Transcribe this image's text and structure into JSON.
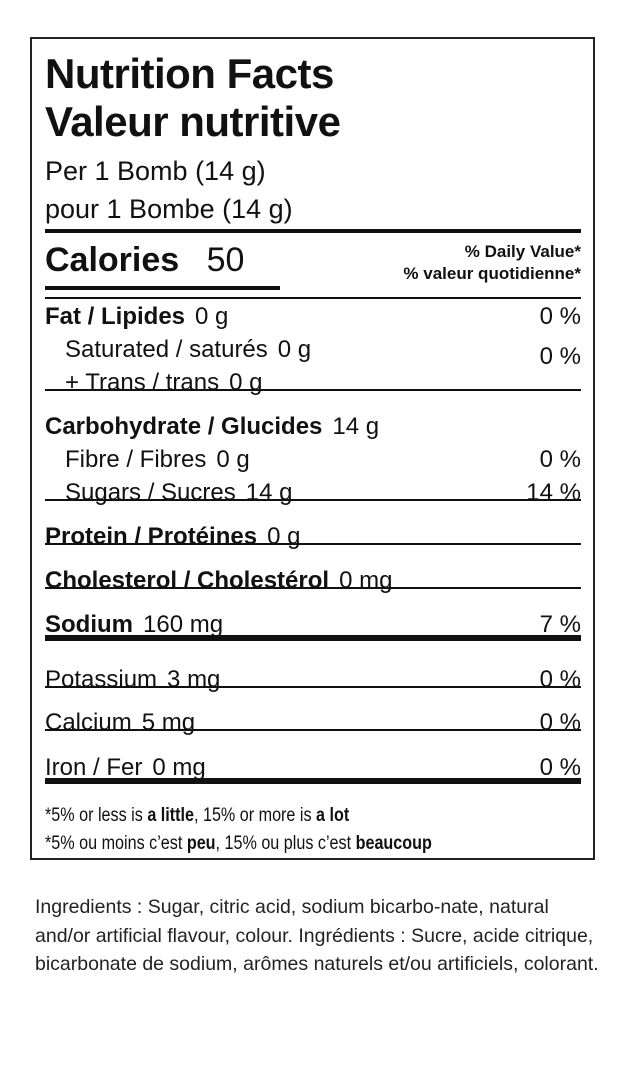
{
  "title_en": "Nutrition Facts",
  "title_fr": "Valeur nutritive",
  "serving_en": "Per 1 Bomb (14 g)",
  "serving_fr": "pour 1 Bombe (14 g)",
  "calories_label": "Calories",
  "calories_value": "50",
  "dv_en": "% Daily Value*",
  "dv_fr": "% valeur quotidienne*",
  "rows": [
    {
      "label": "Fat / Lipides",
      "value": "0 g",
      "dv": "0 %"
    },
    {
      "label": "Saturated / saturés",
      "value": "0 g",
      "dv": "0 %"
    },
    {
      "label": "+ Trans / trans",
      "value": "0 g"
    },
    {
      "label": "Carbohydrate / Glucides",
      "value": "14 g"
    },
    {
      "label": "Fibre / Fibres",
      "value": "0 g",
      "dv": "0 %"
    },
    {
      "label": "Sugars / Sucres",
      "value": "14 g",
      "dv": "14 %"
    },
    {
      "label": "Protein / Protéines",
      "value": "0 g"
    },
    {
      "label": "Cholesterol / Cholestérol",
      "value": "0 mg"
    },
    {
      "label": "Sodium",
      "value": "160 mg",
      "dv": "7 %"
    },
    {
      "label": "Potassium",
      "value": "3 mg",
      "dv": "0 %"
    },
    {
      "label": "Calcium",
      "value": "5 mg",
      "dv": "0 %"
    },
    {
      "label": "Iron / Fer",
      "value": "0 mg",
      "dv": "0 %"
    }
  ],
  "foot_en": {
    "a": "*5% or less is ",
    "b": "a little",
    "c": ", 15% or more is ",
    "d": "a lot"
  },
  "foot_fr": {
    "a": "*5% ou moins c’est ",
    "b": "peu",
    "c": ", 15% ou plus c’est ",
    "d": "beaucoup"
  },
  "ingredients": "Ingredients : Sugar, citric acid, sodium bicarbo-nate, natural and/or artificial flavour, colour. Ingrédients : Sucre, acide citrique, bicarbonate de sodium, arômes naturels et/ou artificiels, colorant."
}
